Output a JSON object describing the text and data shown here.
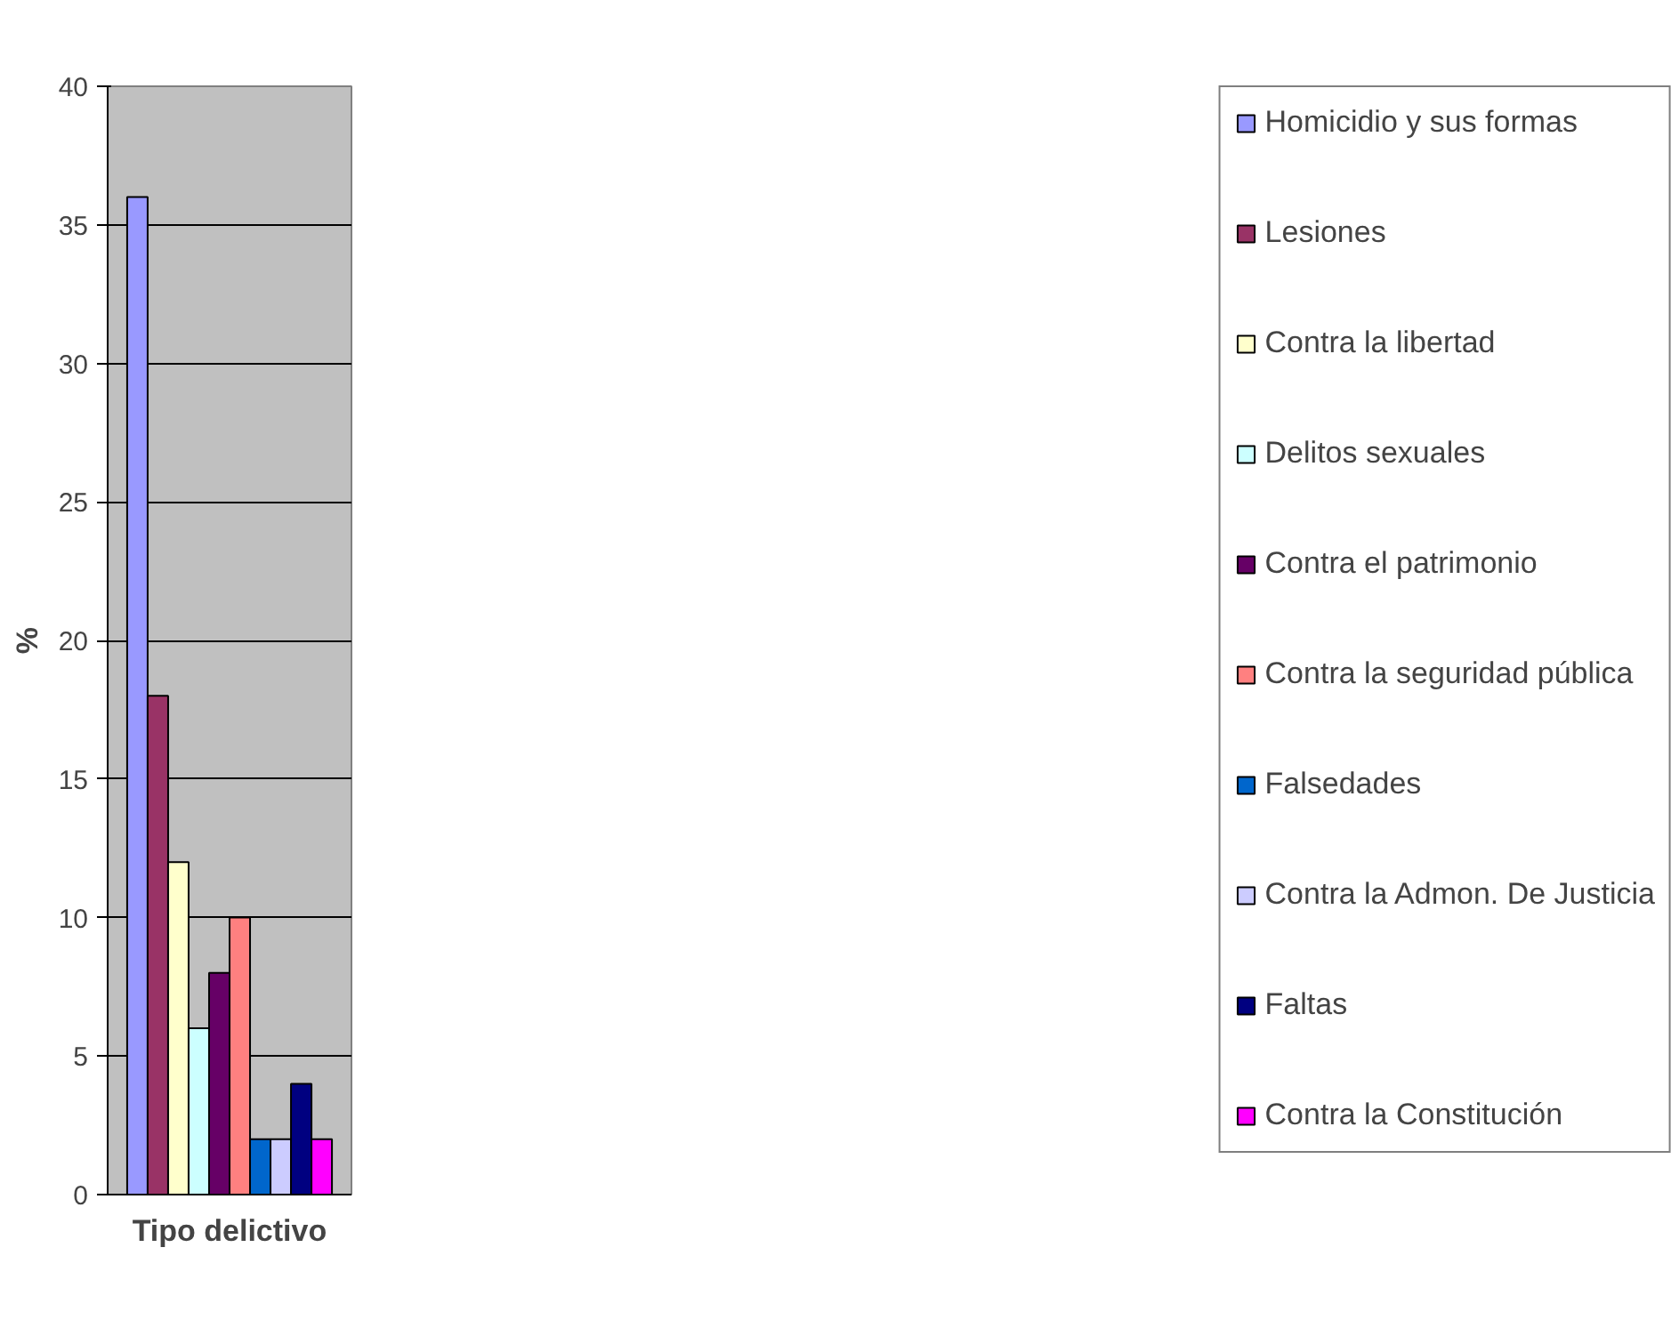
{
  "chart_data": {
    "type": "bar",
    "xlabel": "Tipo delictivo",
    "ylabel": "%",
    "categories": [
      null
    ],
    "ylim": [
      0,
      40
    ],
    "yticks": [
      0,
      5,
      10,
      15,
      20,
      25,
      30,
      35,
      40
    ],
    "grid": "y",
    "legend": "right",
    "series": [
      {
        "name": "Homicidio y sus formas",
        "color": "#9999ff",
        "values": [
          36
        ]
      },
      {
        "name": "Lesiones",
        "color": "#993366",
        "values": [
          18
        ]
      },
      {
        "name": "Contra la libertad",
        "color": "#ffffcc",
        "values": [
          12
        ]
      },
      {
        "name": "Delitos sexuales",
        "color": "#ccffff",
        "values": [
          6
        ]
      },
      {
        "name": "Contra el patrimonio",
        "color": "#660066",
        "values": [
          8
        ]
      },
      {
        "name": "Contra la seguridad pública",
        "color": "#ff8080",
        "values": [
          10
        ]
      },
      {
        "name": "Falsedades",
        "color": "#0066cc",
        "values": [
          2
        ]
      },
      {
        "name": "Contra la Admon. De Justicia",
        "color": "#ccccff",
        "values": [
          2
        ]
      },
      {
        "name": "Faltas",
        "color": "#000080",
        "values": [
          4
        ]
      },
      {
        "name": "Contra la Constitución",
        "color": "#ff00ff",
        "values": [
          2
        ]
      }
    ]
  }
}
